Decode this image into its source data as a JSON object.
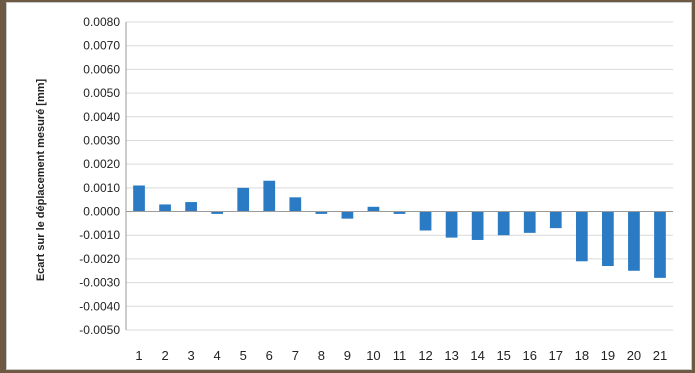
{
  "chart_data": {
    "type": "bar",
    "title": "",
    "xlabel": "",
    "ylabel": "Ecart sur le déplacement mesuré [mm]",
    "categories": [
      "1",
      "2",
      "3",
      "4",
      "5",
      "6",
      "7",
      "8",
      "9",
      "10",
      "11",
      "12",
      "13",
      "14",
      "15",
      "16",
      "17",
      "18",
      "19",
      "20",
      "21"
    ],
    "values": [
      0.0011,
      0.0003,
      0.0004,
      -0.0001,
      0.001,
      0.0013,
      0.0006,
      -0.0001,
      -0.0003,
      0.0002,
      -0.0001,
      -0.0008,
      -0.0011,
      -0.0012,
      -0.001,
      -0.0009,
      -0.0007,
      -0.0021,
      -0.0023,
      -0.0025,
      -0.0028
    ],
    "ylim": [
      -0.005,
      0.008
    ],
    "yticks": [
      "0.0080",
      "0.0070",
      "0.0060",
      "0.0050",
      "0.0040",
      "0.0030",
      "0.0020",
      "0.0010",
      "0.0000",
      "-0.0010",
      "-0.0020",
      "-0.0030",
      "-0.0040",
      "-0.0050"
    ],
    "grid": true,
    "bar_color": "#2a7bc4",
    "grid_color": "#d9d9d9"
  }
}
